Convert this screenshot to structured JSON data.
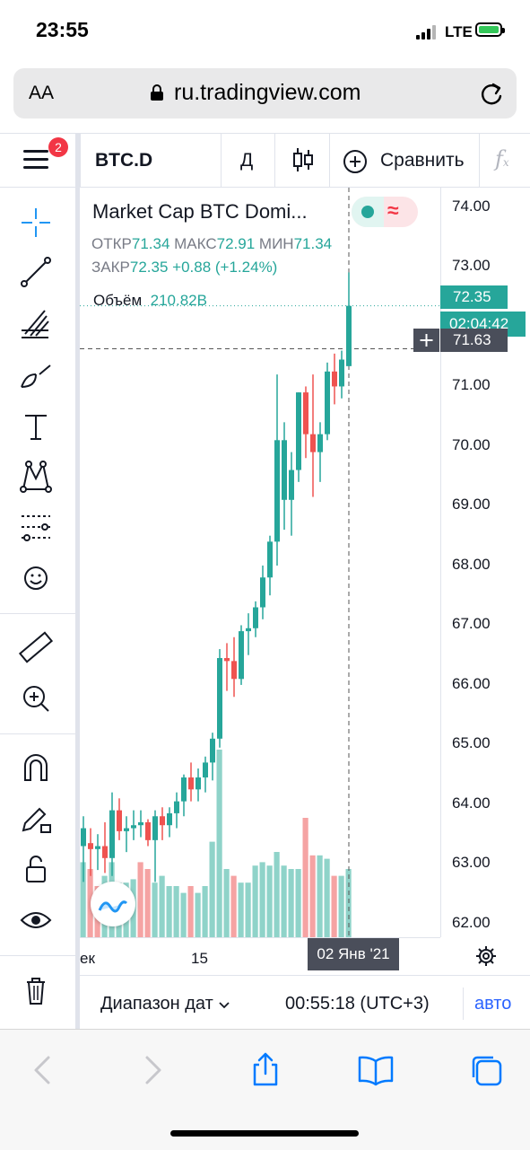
{
  "status_bar": {
    "time": "23:55",
    "network": "LTE"
  },
  "safari": {
    "text_size": "AA",
    "url": "ru.tradingview.com"
  },
  "toolbar": {
    "menu_badge": "2",
    "symbol": "BTC.D",
    "interval": "Д",
    "compare_label": "Сравнить",
    "indicators_icon": "fx-icon"
  },
  "chart_data": {
    "type": "candlestick",
    "title": "Market Cap BTC Domi...",
    "ohlc": {
      "open_label": "ОТКР",
      "open": "71.34",
      "high_label": "МАКС",
      "high": "72.91",
      "low_label": "МИН",
      "low": "71.34",
      "close_label": "ЗАКР",
      "close": "72.35",
      "change": "+0.88",
      "change_pct": "(+1.24%)"
    },
    "volume": {
      "label": "Объём",
      "value": "210.82B"
    },
    "y_ticks": [
      "74.00",
      "73.00",
      "72.00",
      "71.00",
      "70.00",
      "69.00",
      "68.00",
      "67.00",
      "66.00",
      "65.00",
      "64.00",
      "63.00",
      "62.00"
    ],
    "ylim": [
      61.6,
      74.3
    ],
    "last_price": "72.35",
    "countdown": "02:04:42",
    "crosshair_price": "71.63",
    "x_ticks": [
      "ек",
      "15"
    ],
    "crosshair_date": "02 Янв '21",
    "up_color": "#26a69a",
    "down_color": "#ef5350",
    "candles": [
      {
        "o": 63.3,
        "h": 63.8,
        "l": 62.7,
        "c": 63.6
      },
      {
        "o": 63.35,
        "h": 63.6,
        "l": 62.8,
        "c": 63.25
      },
      {
        "o": 63.25,
        "h": 63.5,
        "l": 62.9,
        "c": 63.3
      },
      {
        "o": 63.3,
        "h": 63.7,
        "l": 62.85,
        "c": 63.1
      },
      {
        "o": 63.1,
        "h": 64.2,
        "l": 62.8,
        "c": 63.9
      },
      {
        "o": 63.9,
        "h": 64.1,
        "l": 63.4,
        "c": 63.55
      },
      {
        "o": 63.55,
        "h": 63.8,
        "l": 63.2,
        "c": 63.6
      },
      {
        "o": 63.6,
        "h": 63.9,
        "l": 63.4,
        "c": 63.65
      },
      {
        "o": 63.65,
        "h": 63.9,
        "l": 63.45,
        "c": 63.7
      },
      {
        "o": 63.7,
        "h": 63.75,
        "l": 63.3,
        "c": 63.4
      },
      {
        "o": 63.4,
        "h": 63.9,
        "l": 62.7,
        "c": 63.8
      },
      {
        "o": 63.8,
        "h": 63.95,
        "l": 63.4,
        "c": 63.65
      },
      {
        "o": 63.65,
        "h": 63.95,
        "l": 63.45,
        "c": 63.85
      },
      {
        "o": 63.85,
        "h": 64.2,
        "l": 63.6,
        "c": 64.05
      },
      {
        "o": 64.05,
        "h": 64.5,
        "l": 63.8,
        "c": 64.45
      },
      {
        "o": 64.45,
        "h": 64.7,
        "l": 64.05,
        "c": 64.25
      },
      {
        "o": 64.25,
        "h": 64.6,
        "l": 64.05,
        "c": 64.45
      },
      {
        "o": 64.45,
        "h": 64.8,
        "l": 64.2,
        "c": 64.7
      },
      {
        "o": 64.7,
        "h": 65.2,
        "l": 64.4,
        "c": 65.1
      },
      {
        "o": 65.1,
        "h": 66.6,
        "l": 64.95,
        "c": 66.45
      },
      {
        "o": 66.45,
        "h": 66.7,
        "l": 65.9,
        "c": 66.4
      },
      {
        "o": 66.4,
        "h": 66.8,
        "l": 65.8,
        "c": 66.1
      },
      {
        "o": 66.1,
        "h": 67.0,
        "l": 66.0,
        "c": 66.9
      },
      {
        "o": 66.9,
        "h": 67.2,
        "l": 66.5,
        "c": 66.95
      },
      {
        "o": 66.95,
        "h": 67.4,
        "l": 66.8,
        "c": 67.3
      },
      {
        "o": 67.3,
        "h": 68.0,
        "l": 67.1,
        "c": 67.8
      },
      {
        "o": 67.8,
        "h": 68.5,
        "l": 67.5,
        "c": 68.4
      },
      {
        "o": 68.4,
        "h": 71.2,
        "l": 68.0,
        "c": 70.1
      },
      {
        "o": 69.1,
        "h": 70.4,
        "l": 68.6,
        "c": 70.1
      },
      {
        "o": 69.1,
        "h": 69.9,
        "l": 68.5,
        "c": 69.6
      },
      {
        "o": 69.6,
        "h": 70.9,
        "l": 69.4,
        "c": 70.9
      },
      {
        "o": 70.9,
        "h": 71.0,
        "l": 69.8,
        "c": 70.2
      },
      {
        "o": 70.2,
        "h": 71.2,
        "l": 69.15,
        "c": 69.9
      },
      {
        "o": 69.9,
        "h": 70.4,
        "l": 69.4,
        "c": 70.2
      },
      {
        "o": 70.2,
        "h": 71.4,
        "l": 70.1,
        "c": 71.25
      },
      {
        "o": 71.25,
        "h": 71.55,
        "l": 70.7,
        "c": 71.0
      },
      {
        "o": 71.0,
        "h": 71.6,
        "l": 70.8,
        "c": 71.45
      },
      {
        "o": 71.34,
        "h": 72.91,
        "l": 71.34,
        "c": 72.35
      }
    ],
    "volumes": [
      {
        "v": 0.22,
        "up": true
      },
      {
        "v": 0.2,
        "up": false
      },
      {
        "v": 0.15,
        "up": false
      },
      {
        "v": 0.18,
        "up": true
      },
      {
        "v": 0.22,
        "up": true
      },
      {
        "v": 0.16,
        "up": true
      },
      {
        "v": 0.16,
        "up": true
      },
      {
        "v": 0.17,
        "up": true
      },
      {
        "v": 0.22,
        "up": false
      },
      {
        "v": 0.2,
        "up": false
      },
      {
        "v": 0.16,
        "up": true
      },
      {
        "v": 0.18,
        "up": true
      },
      {
        "v": 0.15,
        "up": true
      },
      {
        "v": 0.15,
        "up": true
      },
      {
        "v": 0.13,
        "up": true
      },
      {
        "v": 0.15,
        "up": false
      },
      {
        "v": 0.13,
        "up": true
      },
      {
        "v": 0.15,
        "up": true
      },
      {
        "v": 0.28,
        "up": true
      },
      {
        "v": 0.55,
        "up": true
      },
      {
        "v": 0.2,
        "up": true
      },
      {
        "v": 0.18,
        "up": false
      },
      {
        "v": 0.16,
        "up": true
      },
      {
        "v": 0.16,
        "up": true
      },
      {
        "v": 0.21,
        "up": true
      },
      {
        "v": 0.22,
        "up": true
      },
      {
        "v": 0.21,
        "up": true
      },
      {
        "v": 0.25,
        "up": true
      },
      {
        "v": 0.21,
        "up": true
      },
      {
        "v": 0.2,
        "up": true
      },
      {
        "v": 0.2,
        "up": true
      },
      {
        "v": 0.35,
        "up": false
      },
      {
        "v": 0.24,
        "up": false
      },
      {
        "v": 0.24,
        "up": true
      },
      {
        "v": 0.23,
        "up": true
      },
      {
        "v": 0.18,
        "up": false
      },
      {
        "v": 0.18,
        "up": true
      },
      {
        "v": 0.2,
        "up": true
      }
    ]
  },
  "bottom": {
    "range_label": "Диапазон дат",
    "timezone": "00:55:18 (UTC+3)",
    "auto_label": "авто"
  },
  "left_tools": [
    "crosshair-icon",
    "trendline-icon",
    "fib-icon",
    "brush-icon",
    "text-icon",
    "pattern-icon",
    "prediction-icon",
    "emoji-icon",
    "ruler-icon",
    "zoom-icon",
    "magnet-icon",
    "lock-drawing-icon",
    "unlock-icon",
    "eye-icon",
    "trash-icon"
  ]
}
